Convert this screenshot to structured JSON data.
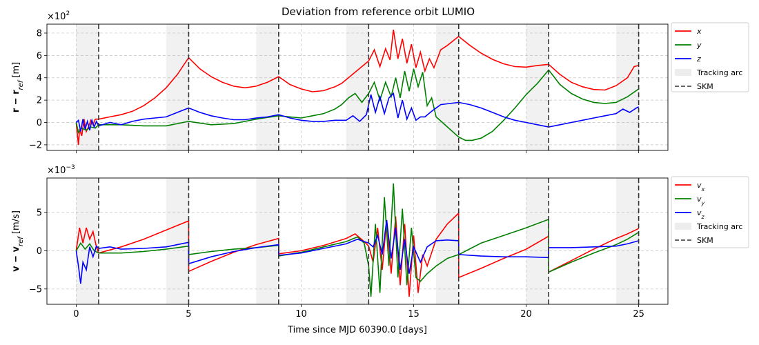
{
  "title": "Deviation from reference orbit LUMIO",
  "xlabel": "Time since MJD 60390.0 [days]",
  "colors": {
    "x": "#ff0000",
    "y": "#008000",
    "z": "#0000ff",
    "track": "#d8d8d8",
    "skm": "#333333"
  },
  "chart_data": [
    {
      "type": "line",
      "id": "position",
      "ylabel": "r − r_ref [m]",
      "ylabel_main": "r − r",
      "ylabel_sub": "ref",
      "ylabel_unit": " [m]",
      "multiplier": "×10",
      "multiplier_exp": "2",
      "xlim": [
        -1.3,
        26.3
      ],
      "ylim": [
        -2.5,
        8.8
      ],
      "xticks": [
        0,
        5,
        10,
        15,
        20,
        25
      ],
      "yticks": [
        -2,
        0,
        2,
        4,
        6,
        8
      ],
      "grid": true,
      "legend_placement": "outside-right",
      "tracking_arcs": [
        [
          0,
          1
        ],
        [
          4,
          5
        ],
        [
          8,
          9
        ],
        [
          12,
          13
        ],
        [
          16,
          17
        ],
        [
          20,
          21
        ],
        [
          24,
          25
        ]
      ],
      "skm_times": [
        1,
        5,
        9,
        13,
        17,
        21,
        25
      ],
      "series": [
        {
          "name": "x",
          "label_main": "x",
          "label_sub": "",
          "color_key": "x",
          "x": [
            0,
            0.1,
            0.15,
            0.25,
            0.35,
            0.45,
            0.55,
            0.65,
            0.75,
            0.85,
            1.0,
            1.5,
            2.0,
            2.5,
            3.0,
            3.5,
            4.0,
            4.5,
            5.0,
            5.5,
            6.0,
            6.5,
            7.0,
            7.5,
            8.0,
            8.5,
            9.0,
            9.5,
            10.0,
            10.5,
            11.0,
            11.5,
            11.8,
            12.1,
            12.4,
            12.7,
            13.0,
            13.25,
            13.5,
            13.75,
            13.95,
            14.1,
            14.3,
            14.5,
            14.7,
            14.9,
            15.1,
            15.3,
            15.5,
            15.7,
            15.9,
            16.2,
            16.5,
            17.0,
            17.5,
            18.0,
            18.5,
            19.0,
            19.5,
            20.0,
            20.5,
            21.0,
            21.5,
            22.0,
            22.5,
            23.0,
            23.5,
            24.0,
            24.5,
            24.8,
            25.0
          ],
          "y": [
            0,
            -2.0,
            -0.6,
            -1.2,
            0.3,
            -0.8,
            -0.4,
            0.2,
            -0.2,
            0.3,
            0.3,
            0.5,
            0.7,
            1.0,
            1.5,
            2.2,
            3.1,
            4.3,
            5.8,
            4.8,
            4.1,
            3.6,
            3.25,
            3.1,
            3.25,
            3.6,
            4.1,
            3.4,
            3.0,
            2.75,
            2.85,
            3.2,
            3.5,
            4.0,
            4.5,
            5.0,
            5.5,
            6.5,
            5.0,
            6.6,
            5.6,
            8.3,
            5.7,
            7.5,
            5.3,
            7.0,
            4.9,
            6.3,
            4.6,
            5.7,
            4.9,
            6.5,
            6.9,
            7.7,
            6.9,
            6.2,
            5.65,
            5.25,
            5.0,
            4.95,
            5.1,
            5.2,
            4.3,
            3.6,
            3.2,
            2.95,
            2.9,
            3.3,
            4.0,
            5.0,
            5.1
          ]
        },
        {
          "name": "y",
          "label_main": "y",
          "label_sub": "",
          "color_key": "y",
          "x": [
            0,
            0.1,
            0.25,
            0.45,
            0.65,
            0.85,
            1.0,
            2.0,
            3.0,
            4.0,
            5.0,
            6.0,
            7.0,
            8.0,
            9.0,
            9.5,
            10.0,
            10.5,
            11.0,
            11.5,
            11.8,
            12.1,
            12.4,
            12.7,
            13.0,
            13.25,
            13.5,
            13.75,
            14.0,
            14.2,
            14.4,
            14.6,
            14.8,
            15.0,
            15.2,
            15.4,
            15.6,
            15.8,
            16.0,
            16.5,
            17.0,
            17.3,
            17.6,
            18.0,
            18.5,
            19.0,
            19.5,
            20.0,
            20.5,
            21.0,
            21.5,
            22.0,
            22.5,
            23.0,
            23.5,
            24.0,
            24.5,
            25.0
          ],
          "y": [
            0,
            -0.9,
            -0.5,
            -0.7,
            -0.4,
            -0.5,
            -0.2,
            -0.2,
            -0.3,
            -0.3,
            0.1,
            -0.2,
            -0.1,
            0.3,
            0.6,
            0.5,
            0.4,
            0.6,
            0.8,
            1.2,
            1.6,
            2.2,
            2.6,
            1.8,
            2.6,
            3.6,
            2.0,
            3.6,
            2.3,
            4.0,
            2.2,
            4.6,
            2.8,
            4.8,
            3.2,
            4.5,
            1.5,
            2.2,
            0.5,
            -0.4,
            -1.3,
            -1.6,
            -1.6,
            -1.4,
            -0.8,
            0.2,
            1.3,
            2.5,
            3.5,
            4.7,
            3.4,
            2.6,
            2.1,
            1.8,
            1.7,
            1.8,
            2.3,
            3.0
          ]
        },
        {
          "name": "z",
          "label_main": "z",
          "label_sub": "",
          "color_key": "z",
          "x": [
            0,
            0.1,
            0.2,
            0.3,
            0.4,
            0.5,
            0.6,
            0.7,
            0.8,
            0.9,
            1.0,
            1.5,
            2.0,
            2.5,
            3.0,
            3.5,
            4.0,
            4.5,
            5.0,
            5.5,
            6.0,
            6.5,
            7.0,
            7.5,
            8.0,
            8.5,
            9.0,
            9.5,
            10.0,
            10.5,
            11.0,
            11.5,
            12.0,
            12.3,
            12.6,
            12.9,
            13.1,
            13.3,
            13.5,
            13.7,
            13.9,
            14.1,
            14.3,
            14.5,
            14.7,
            14.9,
            15.1,
            15.3,
            15.5,
            15.8,
            16.2,
            16.6,
            17.0,
            17.5,
            18.0,
            18.5,
            19.0,
            19.5,
            20.0,
            20.5,
            21.0,
            21.5,
            22.0,
            22.5,
            23.0,
            23.5,
            24.0,
            24.3,
            24.6,
            24.9,
            25.0
          ],
          "y": [
            0,
            0.2,
            -0.8,
            0.3,
            -0.6,
            0.1,
            -0.7,
            0.2,
            -0.4,
            0.1,
            -0.3,
            0.0,
            -0.2,
            0.1,
            0.3,
            0.4,
            0.5,
            0.9,
            1.3,
            0.9,
            0.6,
            0.4,
            0.25,
            0.25,
            0.4,
            0.5,
            0.7,
            0.4,
            0.2,
            0.1,
            0.1,
            0.2,
            0.2,
            0.6,
            0.1,
            0.7,
            2.5,
            0.9,
            2.3,
            0.8,
            2.2,
            2.6,
            0.4,
            2.0,
            0.3,
            1.3,
            0.2,
            0.5,
            0.5,
            1.0,
            1.6,
            1.7,
            1.8,
            1.6,
            1.3,
            0.9,
            0.5,
            0.2,
            0.0,
            -0.2,
            -0.4,
            -0.2,
            0.0,
            0.2,
            0.4,
            0.6,
            0.8,
            1.2,
            0.9,
            1.3,
            1.4
          ]
        }
      ]
    },
    {
      "type": "line",
      "id": "velocity",
      "ylabel": "v − v_ref [m/s]",
      "ylabel_main": "v − v",
      "ylabel_sub": "ref",
      "ylabel_unit": " [m/s]",
      "multiplier": "×10",
      "multiplier_exp": "−3",
      "xlim": [
        -1.3,
        26.3
      ],
      "ylim": [
        -7,
        9.5
      ],
      "xticks": [
        0,
        5,
        10,
        15,
        20,
        25
      ],
      "yticks": [
        -5,
        0,
        5
      ],
      "grid": true,
      "legend_placement": "outside-right",
      "tracking_arcs": [
        [
          0,
          1
        ],
        [
          4,
          5
        ],
        [
          8,
          9
        ],
        [
          12,
          13
        ],
        [
          16,
          17
        ],
        [
          20,
          21
        ],
        [
          24,
          25
        ]
      ],
      "skm_times": [
        1,
        5,
        9,
        13,
        17,
        21,
        25
      ],
      "series": [
        {
          "name": "v_x",
          "label_main": "v",
          "label_sub": "x",
          "color_key": "x",
          "x": [
            0,
            0.15,
            0.3,
            0.45,
            0.6,
            0.75,
            0.9,
            1.0,
            2.0,
            3.0,
            4.0,
            5.0,
            5.001,
            6.0,
            7.0,
            8.0,
            9.0,
            9.001,
            10.0,
            11.0,
            12.0,
            12.4,
            12.8,
            13.0,
            13.2,
            13.4,
            13.6,
            13.8,
            14.0,
            14.2,
            14.4,
            14.6,
            14.8,
            15.0,
            15.2,
            15.4,
            15.6,
            16.0,
            16.5,
            17.0,
            17.001,
            18.0,
            19.0,
            20.0,
            21.0,
            21.001,
            22.0,
            23.0,
            24.0,
            24.5,
            25.0
          ],
          "y": [
            0,
            3.0,
            1.0,
            3.0,
            1.5,
            2.5,
            0.5,
            -0.3,
            0.5,
            1.5,
            2.7,
            3.9,
            -2.7,
            -1.4,
            -0.2,
            0.8,
            1.6,
            -0.4,
            0.0,
            0.7,
            1.6,
            2.2,
            1.2,
            0.6,
            -1.5,
            3.0,
            -2.5,
            4.0,
            -3.0,
            4.5,
            -4.5,
            3.5,
            -6.0,
            2.0,
            -5.5,
            -0.5,
            -2.0,
            1.5,
            3.5,
            4.9,
            -3.5,
            -2.3,
            -1.0,
            0.2,
            1.9,
            -2.8,
            -1.3,
            0.2,
            1.6,
            2.2,
            2.9
          ]
        },
        {
          "name": "v_y",
          "label_main": "v",
          "label_sub": "y",
          "color_key": "y",
          "x": [
            0,
            0.2,
            0.4,
            0.6,
            0.8,
            1.0,
            2.0,
            3.0,
            4.0,
            5.0,
            5.001,
            6.0,
            7.0,
            8.0,
            9.0,
            9.001,
            10.0,
            11.0,
            12.0,
            12.5,
            12.8,
            13.0,
            13.1,
            13.3,
            13.5,
            13.7,
            13.9,
            14.1,
            14.3,
            14.5,
            14.7,
            14.9,
            15.1,
            15.3,
            15.6,
            16.0,
            16.5,
            17.0,
            17.001,
            18.0,
            19.0,
            20.0,
            21.0,
            21.001,
            22.0,
            23.0,
            24.0,
            24.5,
            25.0
          ],
          "y": [
            0,
            1.0,
            0.2,
            0.9,
            0.0,
            -0.3,
            -0.3,
            -0.1,
            0.2,
            0.6,
            -0.5,
            -0.1,
            0.2,
            0.4,
            0.7,
            -0.7,
            -0.2,
            0.5,
            1.2,
            1.8,
            1.0,
            -2.0,
            -6.0,
            3.5,
            -5.5,
            7.0,
            -2.0,
            8.8,
            -3.5,
            5.5,
            -4.5,
            3.0,
            -3.5,
            -4.0,
            -3.0,
            -2.0,
            -1.0,
            -0.5,
            -0.5,
            1.0,
            2.0,
            3.0,
            4.1,
            -2.8,
            -1.5,
            -0.3,
            0.8,
            1.5,
            2.4
          ]
        },
        {
          "name": "v_z",
          "label_main": "v",
          "label_sub": "z",
          "color_key": "z",
          "x": [
            0,
            0.1,
            0.2,
            0.3,
            0.45,
            0.6,
            0.75,
            0.9,
            1.0,
            1.5,
            2.0,
            3.0,
            4.0,
            5.0,
            5.001,
            6.0,
            7.0,
            8.0,
            9.0,
            9.001,
            10.0,
            11.0,
            12.0,
            12.5,
            13.0,
            13.2,
            13.4,
            13.6,
            13.8,
            14.0,
            14.2,
            14.4,
            14.6,
            14.8,
            15.0,
            15.3,
            15.6,
            16.0,
            16.5,
            17.0,
            17.001,
            18.0,
            19.0,
            20.0,
            21.0,
            21.001,
            22.0,
            23.0,
            24.0,
            24.5,
            25.0
          ],
          "y": [
            0,
            -2.0,
            -4.3,
            -1.5,
            -2.5,
            0.5,
            -0.8,
            0.6,
            0.3,
            0.5,
            0.2,
            0.3,
            0.5,
            1.1,
            -1.7,
            -0.8,
            -0.1,
            0.4,
            0.8,
            -0.6,
            -0.3,
            0.3,
            0.9,
            1.5,
            1.0,
            0.5,
            2.0,
            -0.5,
            4.0,
            -1.0,
            3.0,
            -2.5,
            1.5,
            -3.0,
            0.5,
            -1.5,
            0.5,
            1.3,
            1.4,
            1.3,
            -0.5,
            -0.7,
            -0.8,
            -0.8,
            -0.9,
            0.4,
            0.4,
            0.5,
            0.6,
            0.9,
            1.3
          ]
        }
      ]
    }
  ],
  "legend": {
    "tracking_label": "Tracking arc",
    "skm_label": "SKM"
  }
}
